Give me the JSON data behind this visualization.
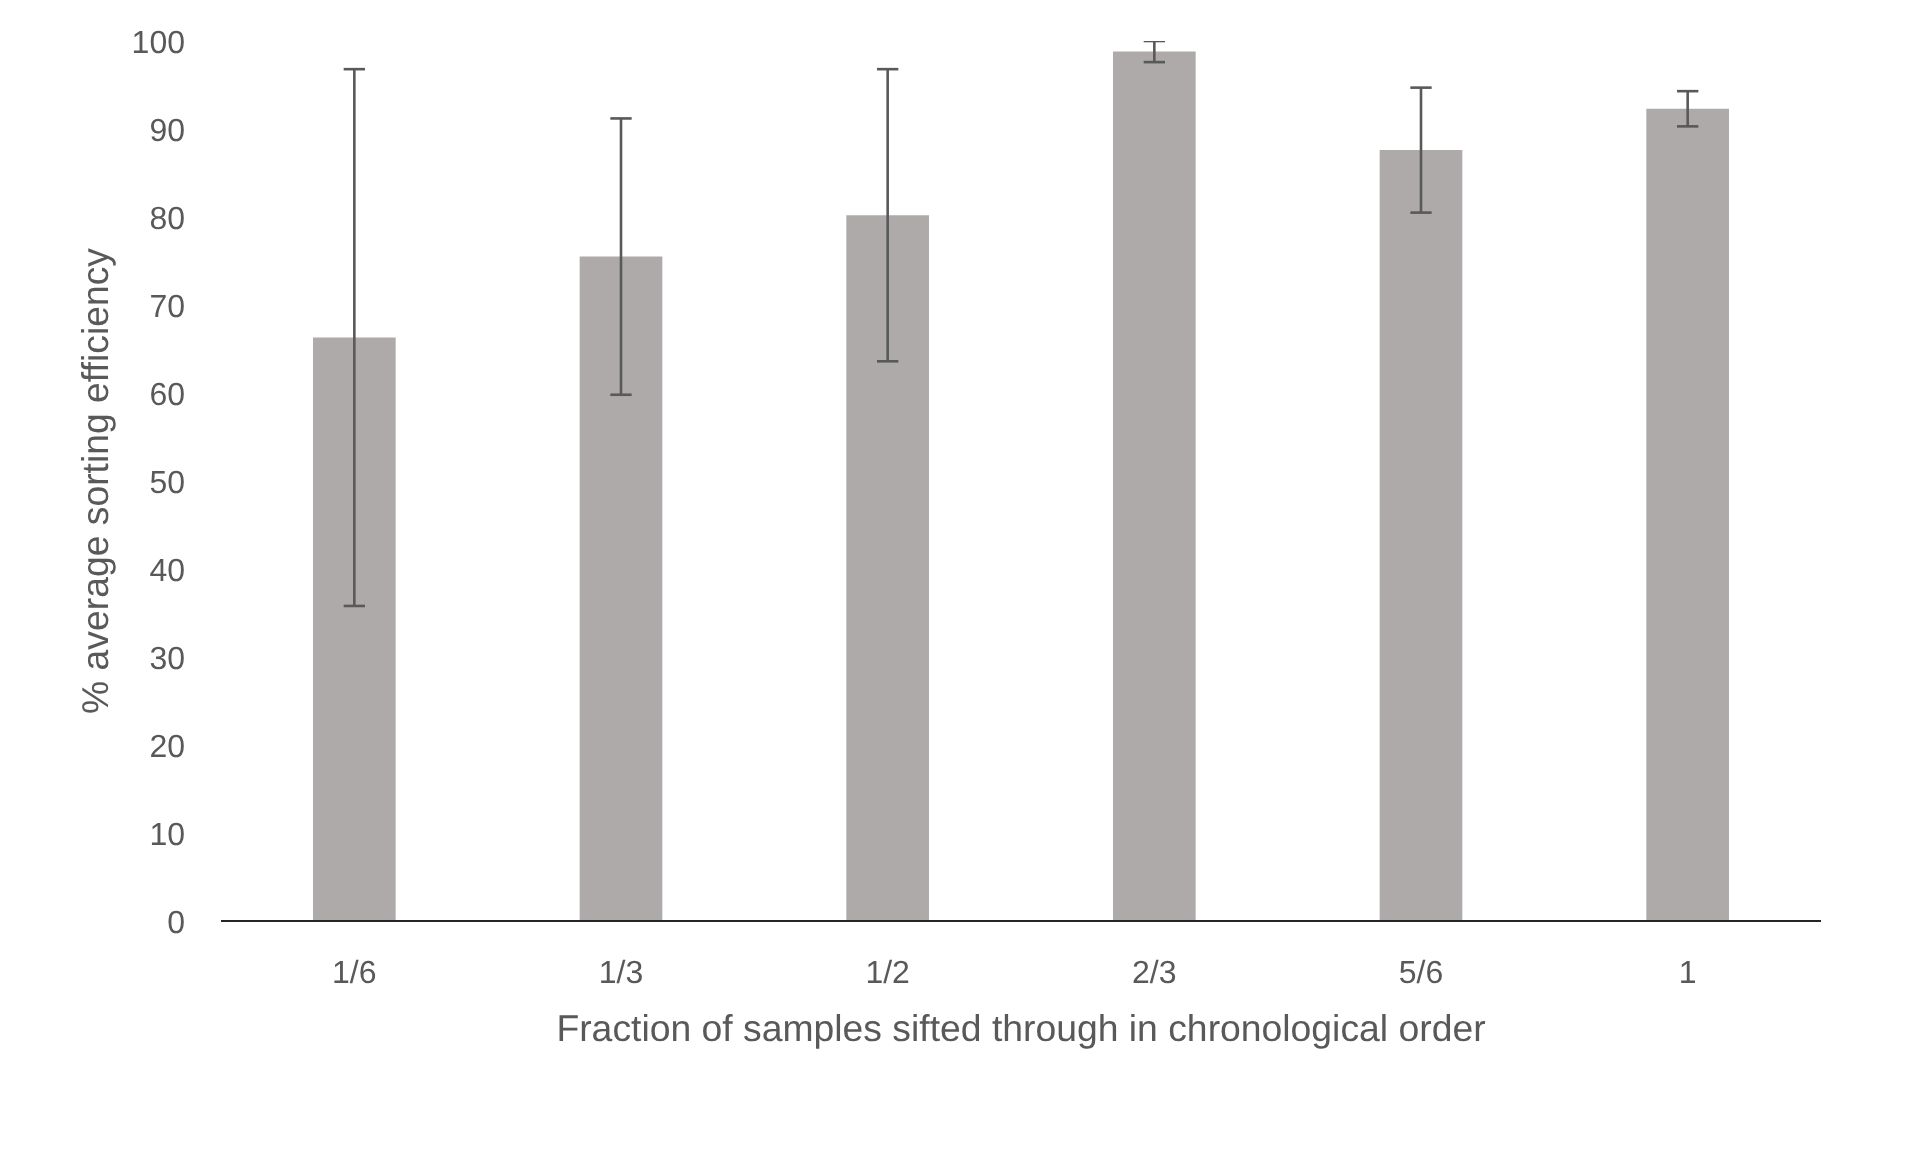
{
  "chart_data": {
    "type": "bar",
    "xlabel": "Fraction of samples sifted through in chronological order",
    "ylabel": "% average sorting efficiency",
    "categories": [
      "1/6",
      "1/3",
      "1/2",
      "2/3",
      "5/6",
      "1"
    ],
    "values": [
      66.3,
      75.5,
      80.2,
      98.8,
      87.6,
      92.3
    ],
    "errors": [
      30.5,
      15.7,
      16.6,
      1.2,
      7.1,
      2.0
    ],
    "color": "#aeaaaa",
    "ylim": [
      0,
      100
    ],
    "yticks": [
      0,
      10,
      20,
      30,
      40,
      50,
      60,
      70,
      80,
      90,
      100
    ],
    "grid": false
  }
}
